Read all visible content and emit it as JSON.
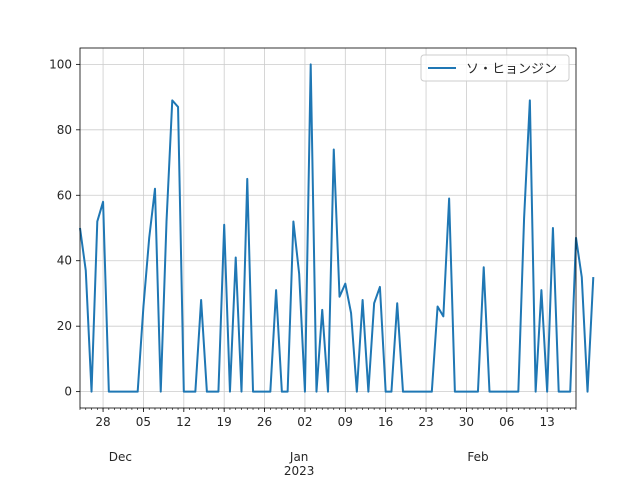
{
  "chart_data": {
    "type": "line",
    "title": "",
    "xlabel": "",
    "ylabel": "",
    "grid": true,
    "legend_placement": "top-right",
    "ylim": [
      -5,
      105
    ],
    "xlim": [
      "2022-11-24",
      "2023-02-18"
    ],
    "y_ticks": [
      0,
      20,
      40,
      60,
      80,
      100
    ],
    "x_ticks": [
      {
        "date": "2022-11-28",
        "label": "28"
      },
      {
        "date": "2022-12-05",
        "label": "05"
      },
      {
        "date": "2022-12-12",
        "label": "12"
      },
      {
        "date": "2022-12-19",
        "label": "19"
      },
      {
        "date": "2022-12-26",
        "label": "26"
      },
      {
        "date": "2023-01-02",
        "label": "02"
      },
      {
        "date": "2023-01-09",
        "label": "09"
      },
      {
        "date": "2023-01-16",
        "label": "16"
      },
      {
        "date": "2023-01-23",
        "label": "23"
      },
      {
        "date": "2023-01-30",
        "label": "30"
      },
      {
        "date": "2023-02-06",
        "label": "06"
      },
      {
        "date": "2023-02-13",
        "label": "13"
      }
    ],
    "month_labels": [
      {
        "date": "2022-12-01",
        "label": "Dec"
      },
      {
        "date": "2023-01-01",
        "label": "Jan",
        "sublabel": "2023"
      },
      {
        "date": "2023-02-01",
        "label": "Feb"
      }
    ],
    "series": [
      {
        "name": "ソ・ヒョンジン",
        "color": "#1f77b4",
        "start_date": "2022-11-24",
        "values": [
          50,
          37,
          0,
          52,
          58,
          0,
          0,
          0,
          0,
          0,
          0,
          26,
          47,
          62,
          0,
          52,
          89,
          87,
          0,
          0,
          0,
          28,
          0,
          0,
          0,
          51,
          0,
          41,
          0,
          65,
          0,
          0,
          0,
          0,
          31,
          0,
          0,
          52,
          36,
          0,
          100,
          0,
          25,
          0,
          74,
          29,
          33,
          24,
          0,
          28,
          0,
          27,
          32,
          0,
          0,
          27,
          0,
          0,
          0,
          0,
          0,
          0,
          26,
          23,
          59,
          0,
          0,
          0,
          0,
          0,
          38,
          0,
          0,
          0,
          0,
          0,
          0,
          53,
          89,
          0,
          31,
          0,
          50,
          0,
          0,
          0,
          47,
          35,
          0,
          35
        ]
      }
    ]
  }
}
